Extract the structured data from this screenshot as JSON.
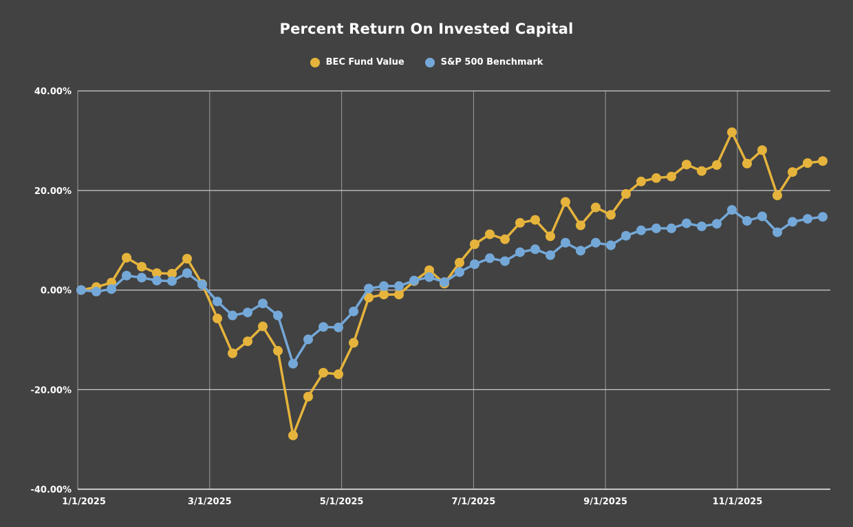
{
  "chart": {
    "title": "Percent Return On Invested Capital"
  },
  "chart_data": {
    "type": "line",
    "title": "Percent Return On Invested Capital",
    "legend_position": "top",
    "grid": true,
    "background_color": "#424242",
    "ylim": [
      -40,
      40
    ],
    "y_unit": "%",
    "yticks": {
      "values": [
        40,
        20,
        0,
        -20,
        -40
      ],
      "labels": [
        "40.00%",
        "20.00%",
        "0.00%",
        "-20.00%",
        "-40.00%"
      ]
    },
    "xticks": [
      "1/1/2025",
      "3/1/2025",
      "5/1/2025",
      "7/1/2025",
      "9/1/2025",
      "11/1/2025"
    ],
    "x": [
      "1/1/2025",
      "1/8/2025",
      "1/15/2025",
      "1/22/2025",
      "1/29/2025",
      "2/5/2025",
      "2/12/2025",
      "2/19/2025",
      "2/26/2025",
      "3/5/2025",
      "3/12/2025",
      "3/19/2025",
      "3/26/2025",
      "4/2/2025",
      "4/9/2025",
      "4/16/2025",
      "4/23/2025",
      "4/30/2025",
      "5/7/2025",
      "5/14/2025",
      "5/21/2025",
      "5/28/2025",
      "6/4/2025",
      "6/11/2025",
      "6/18/2025",
      "6/25/2025",
      "7/2/2025",
      "7/9/2025",
      "7/16/2025",
      "7/23/2025",
      "7/30/2025",
      "8/6/2025",
      "8/13/2025",
      "8/20/2025",
      "8/27/2025",
      "9/3/2025",
      "9/10/2025",
      "9/17/2025",
      "9/24/2025",
      "10/1/2025",
      "10/8/2025",
      "10/15/2025",
      "10/22/2025",
      "10/29/2025",
      "11/5/2025",
      "11/12/2025",
      "11/19/2025",
      "11/26/2025",
      "12/3/2025",
      "12/10/2025"
    ],
    "series": [
      {
        "name": "BEC Fund Value",
        "color": "#E6B43C",
        "values": [
          0.0,
          0.6,
          1.5,
          6.5,
          4.7,
          3.4,
          3.3,
          6.3,
          1.2,
          -5.7,
          -12.7,
          -10.3,
          -7.3,
          -12.2,
          -29.2,
          -21.4,
          -16.6,
          -16.9,
          -10.6,
          -1.5,
          -0.9,
          -0.9,
          1.8,
          4.0,
          1.3,
          5.5,
          9.2,
          11.2,
          10.2,
          13.5,
          14.1,
          10.8,
          17.7,
          13.0,
          16.6,
          15.1,
          19.3,
          21.8,
          22.5,
          22.8,
          25.2,
          23.9,
          25.1,
          31.7,
          25.4,
          28.1,
          19.0,
          23.7,
          25.5,
          25.9
        ]
      },
      {
        "name": "S&P 500 Benchmark",
        "color": "#74A8D8",
        "values": [
          0.0,
          -0.3,
          0.2,
          2.9,
          2.5,
          1.9,
          1.8,
          3.4,
          1.1,
          -2.3,
          -5.1,
          -4.5,
          -2.7,
          -5.1,
          -14.8,
          -9.9,
          -7.4,
          -7.5,
          -4.3,
          0.3,
          0.8,
          0.8,
          1.9,
          2.6,
          1.6,
          3.6,
          5.2,
          6.4,
          5.8,
          7.6,
          8.2,
          7.0,
          9.5,
          7.9,
          9.5,
          9.0,
          10.9,
          12.0,
          12.4,
          12.4,
          13.4,
          12.8,
          13.3,
          16.1,
          13.9,
          14.8,
          11.6,
          13.7,
          14.3,
          14.7
        ]
      }
    ],
    "colors": {
      "horizontal_gridline": "#CCCCCC",
      "vertical_gridline": "#9E9E9E",
      "axis_line": "#CCCCCC",
      "label_text": "#FFFFFF"
    }
  }
}
